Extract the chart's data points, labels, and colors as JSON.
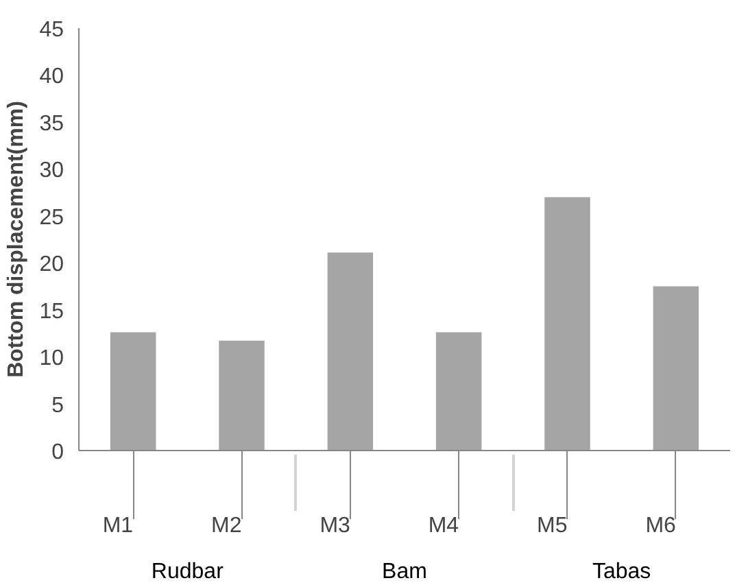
{
  "chart_data": {
    "type": "bar",
    "ylabel": "Bottom displacement(mm)",
    "categories": [
      "M1",
      "M2",
      "M3",
      "M4",
      "M5",
      "M6"
    ],
    "annotations": [
      "Rudbar",
      "Bam",
      "Tabas"
    ],
    "values": [
      12.6,
      11.7,
      21.1,
      12.6,
      27.0,
      17.5
    ],
    "color": "#a5a5a5",
    "ylim": [
      0,
      45
    ],
    "yticks": [
      0,
      5,
      10,
      15,
      20,
      25,
      30,
      35,
      40,
      45
    ],
    "grid": false
  }
}
